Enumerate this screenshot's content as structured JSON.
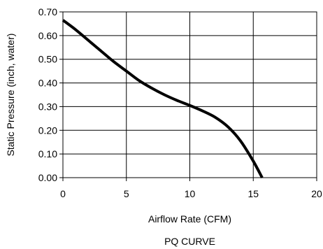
{
  "chart_data": {
    "type": "line",
    "title": "PQ CURVE",
    "xlabel": "Airflow Rate (CFM)",
    "ylabel": "Static Pressure (inch, water)",
    "xlim": [
      0,
      20
    ],
    "ylim": [
      0,
      0.7
    ],
    "x_ticks": [
      0,
      5,
      10,
      15,
      20
    ],
    "x_tick_labels": [
      "0",
      "5",
      "10",
      "15",
      "20"
    ],
    "y_ticks": [
      0,
      0.1,
      0.2,
      0.3,
      0.4,
      0.5,
      0.6,
      0.7
    ],
    "y_tick_labels": [
      "0.00",
      "0.10",
      "0.20",
      "0.30",
      "0.40",
      "0.50",
      "0.60",
      "0.70"
    ],
    "grid": true,
    "series": [
      {
        "color": "#000000",
        "x": [
          0,
          1,
          2,
          3,
          4,
          5,
          6,
          7,
          8,
          9,
          10,
          11,
          12,
          13,
          14,
          15,
          15.7
        ],
        "y": [
          0.665,
          0.625,
          0.58,
          0.535,
          0.49,
          0.45,
          0.41,
          0.378,
          0.35,
          0.326,
          0.305,
          0.282,
          0.255,
          0.215,
          0.155,
          0.07,
          0.0
        ]
      }
    ]
  }
}
